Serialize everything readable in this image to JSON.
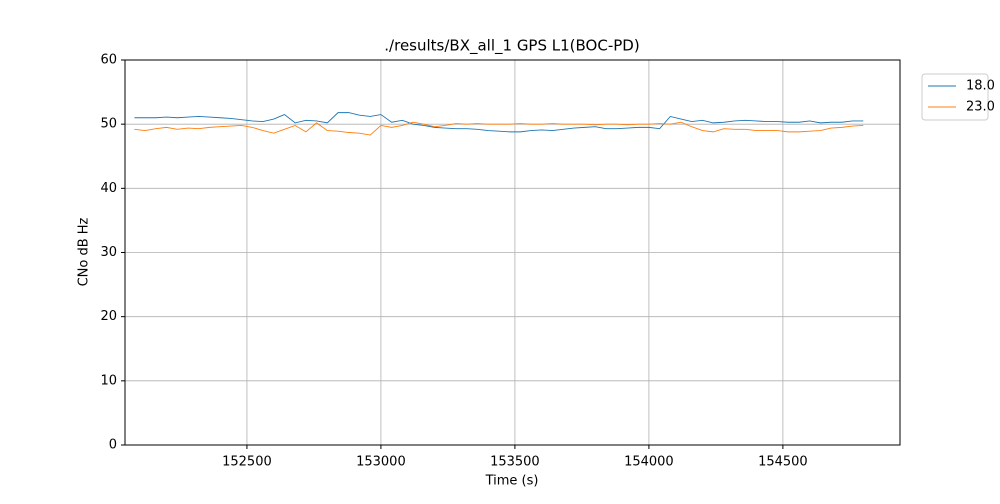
{
  "chart_data": {
    "type": "line",
    "title": "./results/BX_all_1 GPS L1(BOC-PD)",
    "x_label": "Time (s)",
    "y_label": "CNo dB Hz",
    "x": [
      152080,
      152120,
      152160,
      152200,
      152240,
      152280,
      152320,
      152360,
      152400,
      152440,
      152480,
      152520,
      152560,
      152600,
      152640,
      152680,
      152720,
      152760,
      152800,
      152840,
      152880,
      152920,
      152960,
      153000,
      153040,
      153080,
      153120,
      153160,
      153200,
      153240,
      153280,
      153320,
      153360,
      153400,
      153440,
      153480,
      153520,
      153560,
      153600,
      153640,
      153680,
      153720,
      153760,
      153800,
      153840,
      153880,
      153920,
      153960,
      154000,
      154040,
      154080,
      154120,
      154160,
      154200,
      154240,
      154280,
      154320,
      154360,
      154400,
      154440,
      154480,
      154520,
      154560,
      154600,
      154640,
      154680,
      154720,
      154760,
      154800
    ],
    "series": [
      {
        "name": "18.0",
        "color": "#1f77b4",
        "values": [
          51.0,
          51.0,
          51.0,
          51.1,
          51.0,
          51.1,
          51.2,
          51.1,
          51.0,
          50.9,
          50.7,
          50.5,
          50.4,
          50.8,
          51.5,
          50.2,
          50.6,
          50.5,
          50.2,
          51.8,
          51.8,
          51.4,
          51.2,
          51.5,
          50.3,
          50.6,
          50.0,
          49.8,
          49.5,
          49.4,
          49.3,
          49.3,
          49.2,
          49.0,
          48.9,
          48.8,
          48.8,
          49.0,
          49.1,
          49.0,
          49.2,
          49.4,
          49.5,
          49.6,
          49.3,
          49.3,
          49.4,
          49.5,
          49.5,
          49.3,
          51.2,
          50.8,
          50.4,
          50.6,
          50.2,
          50.3,
          50.5,
          50.6,
          50.5,
          50.4,
          50.4,
          50.3,
          50.3,
          50.5,
          50.2,
          50.3,
          50.3,
          50.5,
          50.5
        ]
      },
      {
        "name": "23.0",
        "color": "#ff7f0e",
        "values": [
          49.2,
          49.0,
          49.3,
          49.5,
          49.2,
          49.4,
          49.3,
          49.5,
          49.6,
          49.7,
          49.8,
          49.5,
          49.0,
          48.6,
          49.2,
          49.8,
          48.8,
          50.2,
          49.0,
          48.9,
          48.7,
          48.6,
          48.3,
          49.8,
          49.5,
          49.8,
          50.3,
          50.0,
          49.6,
          49.8,
          50.1,
          50.0,
          50.1,
          50.0,
          50.0,
          50.0,
          50.1,
          50.0,
          50.0,
          50.1,
          50.0,
          50.0,
          50.0,
          49.9,
          50.0,
          50.0,
          49.9,
          50.0,
          50.0,
          50.1,
          50.0,
          50.3,
          49.6,
          49.0,
          48.8,
          49.3,
          49.2,
          49.2,
          49.0,
          49.0,
          49.0,
          48.8,
          48.8,
          48.9,
          49.0,
          49.4,
          49.5,
          49.7,
          49.8
        ]
      }
    ],
    "xlim": [
      152045,
      154937
    ],
    "xticks": [
      152500,
      153000,
      153500,
      154000,
      154500
    ],
    "ylim": [
      0,
      60
    ],
    "yticks": [
      0,
      10,
      20,
      30,
      40,
      50,
      60
    ],
    "grid": true,
    "legend": "outside-upper-right"
  }
}
